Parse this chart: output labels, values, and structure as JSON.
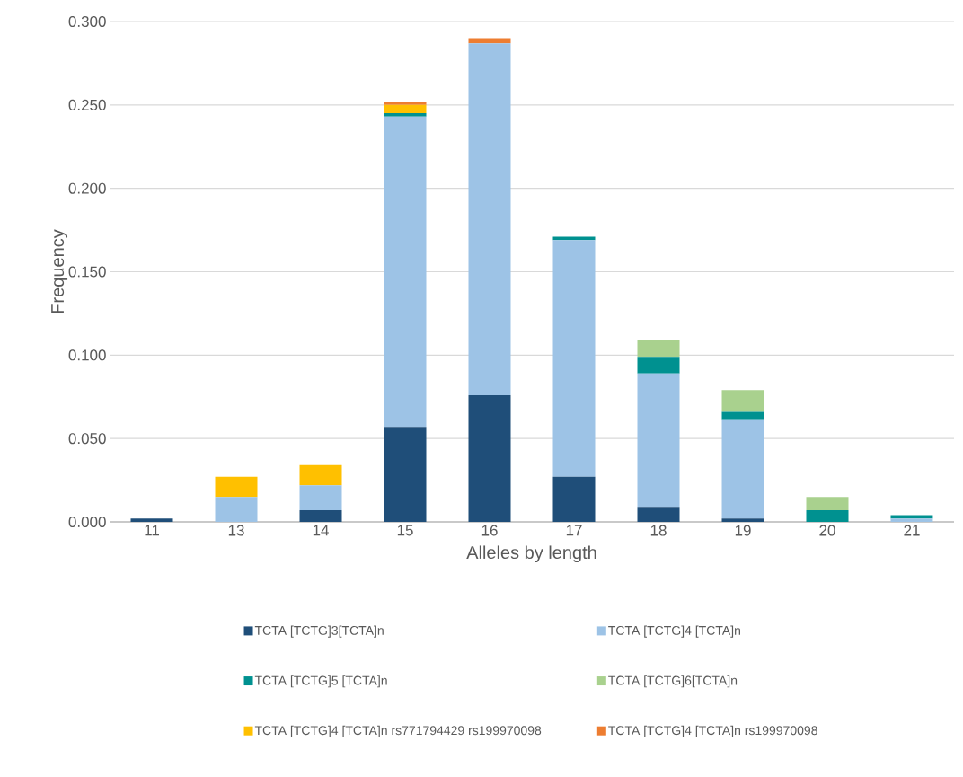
{
  "chart_data": {
    "type": "bar",
    "stacked": true,
    "xlabel": "Alleles by length",
    "ylabel": "Frequency",
    "categories": [
      "11",
      "13",
      "14",
      "15",
      "16",
      "17",
      "18",
      "19",
      "20",
      "21"
    ],
    "series": [
      {
        "name": "TCTA [TCTG]3[TCTA]n",
        "color": "#1f4e79",
        "values": [
          0.002,
          null,
          0.007,
          0.057,
          0.076,
          0.027,
          0.009,
          0.002,
          null,
          null
        ]
      },
      {
        "name": "TCTA [TCTG]4 [TCTA]n",
        "color": "#9dc3e6",
        "values": [
          null,
          0.015,
          0.015,
          0.186,
          0.211,
          0.142,
          0.08,
          0.059,
          null,
          0.002
        ]
      },
      {
        "name": "TCTA [TCTG]5 [TCTA]n",
        "color": "#009190",
        "values": [
          null,
          null,
          null,
          0.002,
          null,
          0.002,
          0.01,
          0.005,
          0.007,
          0.002
        ]
      },
      {
        "name": "TCTA [TCTG]6[TCTA]n",
        "color": "#a9d18e",
        "values": [
          null,
          null,
          null,
          null,
          null,
          null,
          0.01,
          0.013,
          0.008,
          null
        ]
      },
      {
        "name": "TCTA [TCTG]4 [TCTA]n rs771794429 rs199970098",
        "color": "#ffc000",
        "values": [
          null,
          0.012,
          0.012,
          0.005,
          null,
          null,
          null,
          null,
          null,
          null
        ]
      },
      {
        "name": "TCTA [TCTG]4 [TCTA]n rs199970098",
        "color": "#ed7d31",
        "values": [
          null,
          null,
          null,
          0.002,
          0.003,
          null,
          null,
          null,
          null,
          null
        ]
      }
    ],
    "ylim": [
      0,
      0.3
    ],
    "yticks": [
      {
        "value": 0,
        "label": "0.000"
      },
      {
        "value": 0.05,
        "label": "0.050"
      },
      {
        "value": 0.1,
        "label": "0.100"
      },
      {
        "value": 0.15,
        "label": "0.150"
      },
      {
        "value": 0.2,
        "label": "0.200"
      },
      {
        "value": 0.25,
        "label": "0.250"
      },
      {
        "value": 0.3,
        "label": "0.300"
      }
    ],
    "grid": "y",
    "legend": "bottom"
  }
}
